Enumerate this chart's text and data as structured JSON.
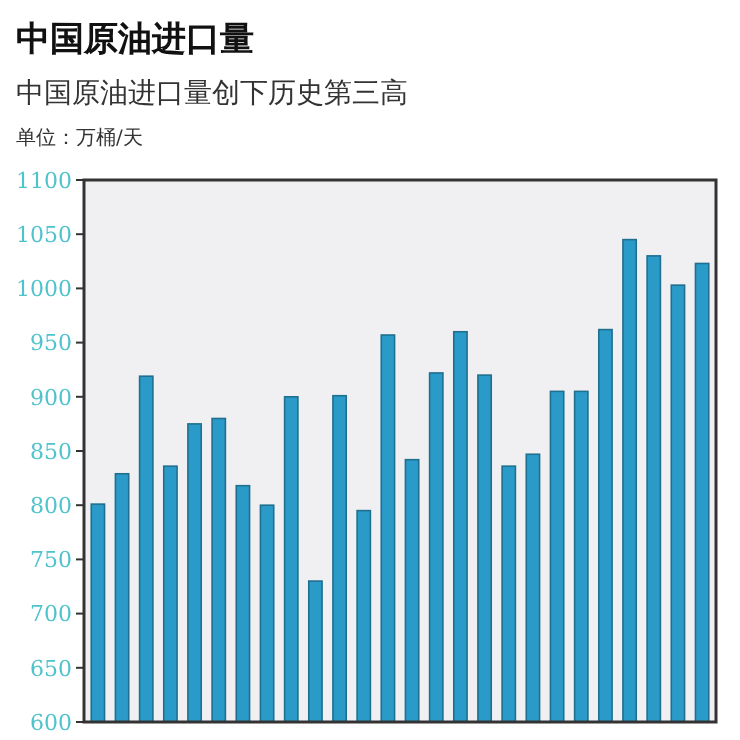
{
  "chart_data": {
    "type": "bar",
    "title": "中国原油进口量",
    "subtitle": "中国原油进口量创下历史第三高",
    "annotations": [
      "单位：万桶/天"
    ],
    "categories": [
      null,
      null,
      null,
      null,
      null,
      null,
      null,
      null,
      null,
      null,
      null,
      null,
      null,
      null,
      null,
      null,
      null,
      null,
      null,
      null,
      null,
      null,
      null,
      null,
      null,
      null
    ],
    "values": [
      801,
      829,
      919,
      836,
      875,
      880,
      818,
      800,
      900,
      730,
      901,
      795,
      957,
      842,
      922,
      960,
      920,
      836,
      847,
      905,
      905,
      962,
      1045,
      1030,
      1003,
      1023
    ],
    "color": "#2a9bc9",
    "ylim": [
      600,
      1100
    ],
    "yticks": [
      600,
      650,
      700,
      750,
      800,
      850,
      900,
      950,
      1000,
      1050,
      1100
    ],
    "grid": false
  }
}
